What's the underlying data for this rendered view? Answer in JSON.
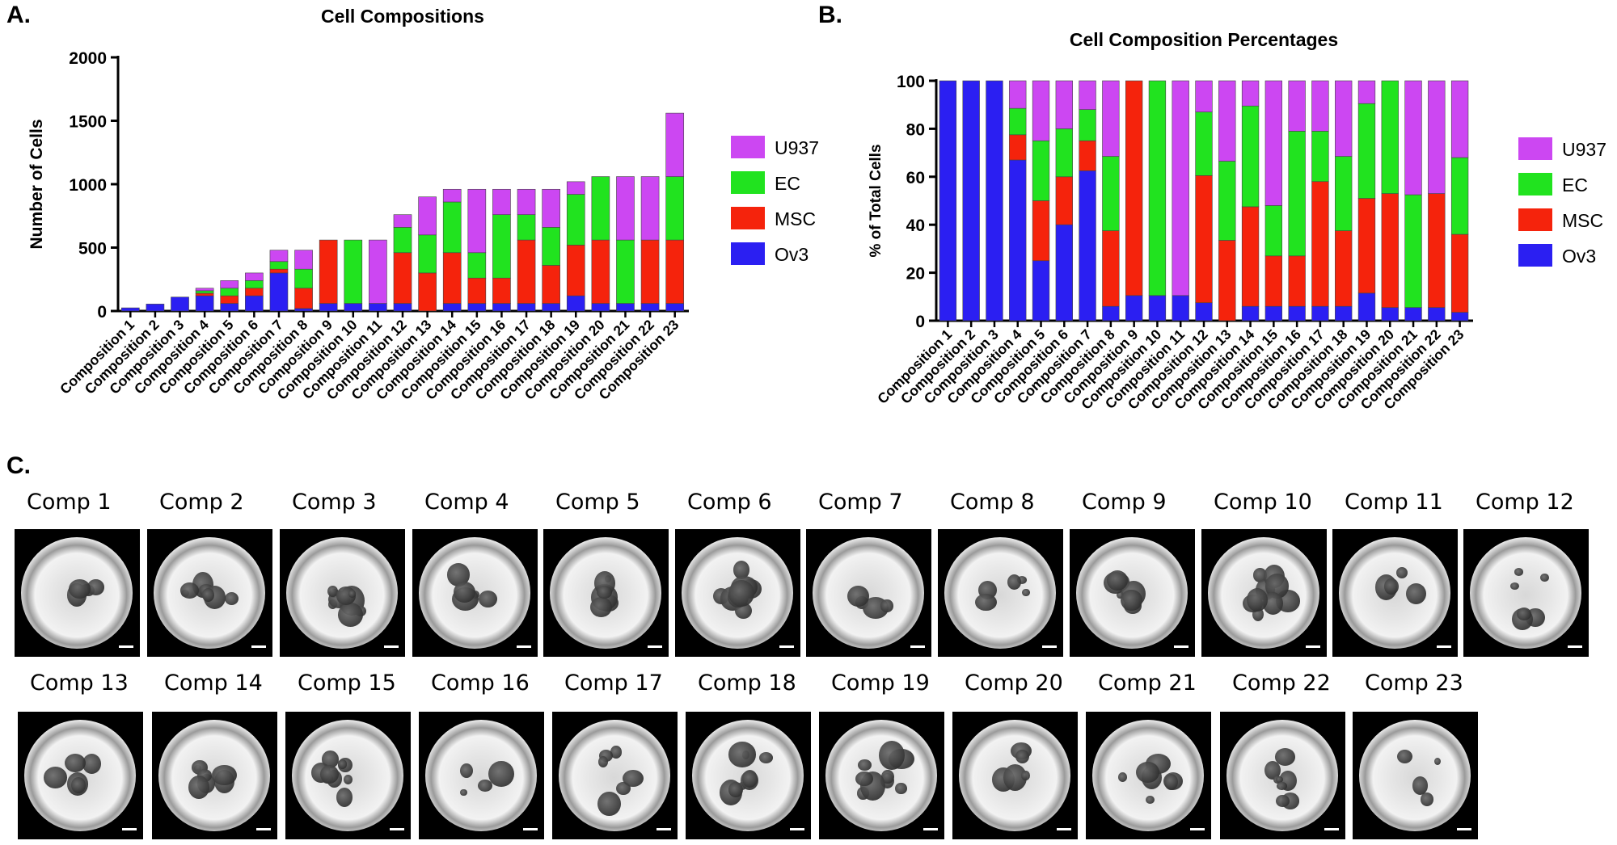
{
  "panels": {
    "a": "A.",
    "b": "B.",
    "c": "C."
  },
  "chart_data": [
    {
      "type": "bar",
      "stacked": true,
      "title": "Cell Compositions",
      "xlabel": "",
      "ylabel": "Number of Cells",
      "ylim": [
        0,
        2000
      ],
      "yticks": [
        0,
        500,
        1000,
        1500,
        2000
      ],
      "legend_position": "right",
      "categories": [
        "Composition 1",
        "Composition 2",
        "Composition 3",
        "Composition 4",
        "Composition 5",
        "Composition 6",
        "Composition 7",
        "Composition 8",
        "Composition 9",
        "Composition 10",
        "Composition 11",
        "Composition 12",
        "Composition 13",
        "Composition 14",
        "Composition 15",
        "Composition 16",
        "Composition 17",
        "Composition 18",
        "Composition 19",
        "Composition 20",
        "Composition 21",
        "Composition 22",
        "Composition 23"
      ],
      "series": [
        {
          "name": "Ov3",
          "color": "#2b1ff2",
          "values": [
            25,
            55,
            110,
            120,
            60,
            120,
            300,
            20,
            60,
            60,
            60,
            60,
            0,
            60,
            60,
            60,
            60,
            60,
            120,
            60,
            60,
            60,
            60
          ]
        },
        {
          "name": "MSC",
          "color": "#f5230c",
          "values": [
            0,
            0,
            0,
            20,
            60,
            60,
            30,
            160,
            500,
            0,
            0,
            400,
            300,
            400,
            200,
            200,
            500,
            300,
            400,
            500,
            0,
            500,
            500
          ]
        },
        {
          "name": "EC",
          "color": "#21e31f",
          "values": [
            0,
            0,
            0,
            20,
            60,
            60,
            60,
            150,
            0,
            500,
            0,
            200,
            300,
            400,
            200,
            500,
            200,
            300,
            400,
            500,
            500,
            0,
            500
          ]
        },
        {
          "name": "U937",
          "color": "#cc47f2",
          "values": [
            0,
            0,
            0,
            20,
            60,
            60,
            90,
            150,
            0,
            0,
            500,
            100,
            300,
            100,
            500,
            200,
            200,
            300,
            100,
            0,
            500,
            500,
            500
          ]
        }
      ]
    },
    {
      "type": "bar",
      "stacked": true,
      "title": "Cell Composition Percentages",
      "xlabel": "",
      "ylabel": "% of Total Cells",
      "ylim": [
        0,
        100
      ],
      "yticks": [
        0,
        20,
        40,
        60,
        80,
        100
      ],
      "legend_position": "right",
      "categories": [
        "Composition 1",
        "Composition 2",
        "Composition 3",
        "Composition 4",
        "Composition 5",
        "Composition 6",
        "Composition 7",
        "Composition 8",
        "Composition 9",
        "Composition 10",
        "Composition 11",
        "Composition 12",
        "Composition 13",
        "Composition 14",
        "Composition 15",
        "Composition 16",
        "Composition 17",
        "Composition 18",
        "Composition 19",
        "Composition 20",
        "Composition 21",
        "Composition 22",
        "Composition 23"
      ],
      "series": [
        {
          "name": "Ov3",
          "color": "#2b1ff2",
          "values": [
            100,
            100,
            100,
            67,
            25,
            40,
            62.5,
            6,
            10.5,
            10.5,
            10.5,
            7.5,
            0,
            6,
            6,
            6,
            6,
            6,
            11.5,
            5.5,
            5.5,
            5.5,
            3.5
          ]
        },
        {
          "name": "MSC",
          "color": "#f5230c",
          "values": [
            0,
            0,
            0,
            10.5,
            25,
            20,
            12.5,
            31.5,
            89.5,
            0,
            0,
            53,
            33.5,
            41.5,
            21,
            21,
            52,
            31.5,
            39.5,
            47.5,
            0,
            47.5,
            32.5
          ]
        },
        {
          "name": "EC",
          "color": "#21e31f",
          "values": [
            0,
            0,
            0,
            11,
            25,
            20,
            13,
            31,
            0,
            89.5,
            0,
            26.5,
            33,
            42,
            21,
            52,
            21,
            31,
            39.5,
            47,
            47,
            0,
            32
          ]
        },
        {
          "name": "U937",
          "color": "#cc47f2",
          "values": [
            0,
            0,
            0,
            11.5,
            25,
            20,
            12,
            31.5,
            0,
            0,
            89.5,
            13,
            33.5,
            10.5,
            52,
            21,
            21,
            31.5,
            9.5,
            0,
            47.5,
            47,
            32
          ]
        }
      ]
    }
  ],
  "gallery": {
    "rows": [
      [
        "Comp 1",
        "Comp 2",
        "Comp 3",
        "Comp 4",
        "Comp 5",
        "Comp 6",
        "Comp 7",
        "Comp 8",
        "Comp 9",
        "Comp 10",
        "Comp 11",
        "Comp 12"
      ],
      [
        "Comp 13",
        "Comp 14",
        "Comp 15",
        "Comp 16",
        "Comp 17",
        "Comp 18",
        "Comp 19",
        "Comp 20",
        "Comp 21",
        "Comp 22",
        "Comp 23"
      ]
    ]
  }
}
